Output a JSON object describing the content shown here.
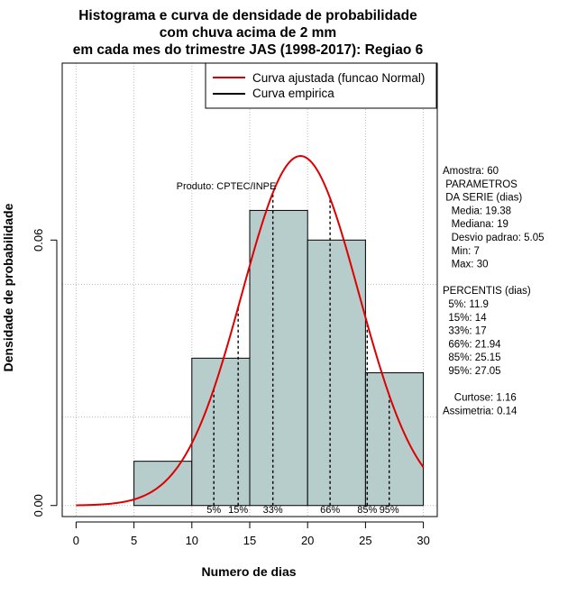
{
  "chart_data": {
    "type": "histogram",
    "title_lines": [
      "Histograma e curva de densidade de probabilidade",
      "com chuva acima de 2 mm",
      "em cada mes do trimestre JAS (1998-2017): Regiao 6"
    ],
    "xlabel": "Numero de dias",
    "ylabel": "Densidade de probabilidade",
    "xlim": [
      -1.2,
      31.2
    ],
    "ylim": [
      -0.0025,
      0.1
    ],
    "x_ticks": [
      0,
      5,
      10,
      15,
      20,
      25,
      30
    ],
    "y_ticks": [
      0.0,
      0.06
    ],
    "y_tick_labels": [
      "0.00",
      "0.06"
    ],
    "grid_x": [
      0,
      5,
      10,
      15,
      20,
      25,
      30
    ],
    "grid_y": [
      0.0,
      0.02,
      0.05,
      0.1
    ],
    "bins": [
      {
        "start": 5,
        "end": 10,
        "density": 0.01
      },
      {
        "start": 10,
        "end": 15,
        "density": 0.0333
      },
      {
        "start": 15,
        "end": 20,
        "density": 0.0667
      },
      {
        "start": 20,
        "end": 25,
        "density": 0.06
      },
      {
        "start": 25,
        "end": 30,
        "density": 0.03
      }
    ],
    "normal_fit": {
      "mean": 19.38,
      "sd": 5.05,
      "x_range": [
        0,
        30
      ]
    },
    "percentiles": [
      {
        "label": "5%",
        "value": 11.9
      },
      {
        "label": "15%",
        "value": 14
      },
      {
        "label": "33%",
        "value": 17
      },
      {
        "label": "66%",
        "value": 21.94
      },
      {
        "label": "85%",
        "value": 25.15
      },
      {
        "label": "95%",
        "value": 27.05
      }
    ],
    "legend": [
      {
        "label": "Curva ajustada (funcao Normal)",
        "color": "#dd0000"
      },
      {
        "label": "Curva empirica",
        "color": "#000000"
      }
    ],
    "annotation": "Produto: CPTEC/INPE",
    "side_text": [
      "Amostra: 60",
      " PARAMETROS",
      " DA SERIE (dias)",
      "   Media: 19.38",
      "   Mediana: 19",
      "   Desvio padrao: 5.05",
      "   Min: 7",
      "   Max: 30",
      "",
      "PERCENTIS (dias)",
      "  5%: 11.9",
      "  15%: 14",
      "  33%: 17",
      "  66%: 21.94",
      "  85%: 25.15",
      "  95%: 27.05",
      "",
      "    Curtose: 1.16",
      "Assimetria: 0.14"
    ],
    "colors": {
      "bar_fill": "#b6cdcc",
      "curve": "#dd0000",
      "grid": "#bbbbbb"
    }
  }
}
